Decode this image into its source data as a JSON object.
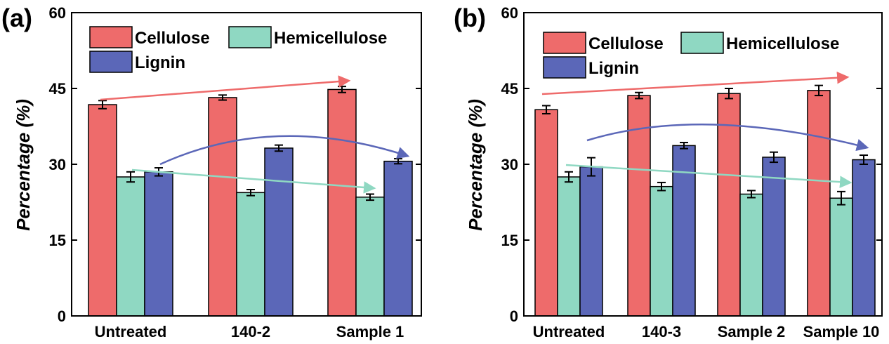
{
  "colors": {
    "cellulose": "#ee6b6b",
    "hemicellulose": "#8fd8c2",
    "lignin": "#5b67b8",
    "cellulose_arrow": "#ee6b6b",
    "hemicellulose_arrow": "#8fd8c2",
    "lignin_arrow": "#5b67b8"
  },
  "chart_data": [
    {
      "type": "bar",
      "panel": "(a)",
      "title": "",
      "xlabel": "",
      "ylabel": "Percentage (%)",
      "ylim": [
        0,
        60
      ],
      "yticks": [
        "0",
        "15",
        "30",
        "45",
        "60"
      ],
      "categories": [
        "Untreated",
        "140-2",
        "Sample 1"
      ],
      "legend": [
        "Cellulose",
        "Hemicellulose",
        "Lignin"
      ],
      "series": [
        {
          "name": "Cellulose",
          "values": [
            41.8,
            43.2,
            44.8
          ],
          "errors": [
            0.8,
            0.5,
            0.6
          ]
        },
        {
          "name": "Hemicellulose",
          "values": [
            27.5,
            24.4,
            23.5
          ],
          "errors": [
            1.0,
            0.6,
            0.6
          ]
        },
        {
          "name": "Lignin",
          "values": [
            28.5,
            33.2,
            30.6
          ],
          "errors": [
            0.8,
            0.6,
            0.5
          ]
        }
      ]
    },
    {
      "type": "bar",
      "panel": "(b)",
      "title": "",
      "xlabel": "",
      "ylabel": "Percentage (%)",
      "ylim": [
        0,
        60
      ],
      "yticks": [
        "0",
        "15",
        "30",
        "45",
        "60"
      ],
      "categories": [
        "Untreated",
        "140-3",
        "Sample 2",
        "Sample 10"
      ],
      "legend": [
        "Cellulose",
        "Hemicellulose",
        "Lignin"
      ],
      "series": [
        {
          "name": "Cellulose",
          "values": [
            40.8,
            43.6,
            44.0,
            44.6
          ],
          "errors": [
            0.8,
            0.6,
            1.0,
            1.0
          ]
        },
        {
          "name": "Hemicellulose",
          "values": [
            27.5,
            25.6,
            24.1,
            23.3
          ],
          "errors": [
            1.0,
            0.8,
            0.7,
            1.3
          ]
        },
        {
          "name": "Lignin",
          "values": [
            29.5,
            33.7,
            31.4,
            30.9
          ],
          "errors": [
            1.8,
            0.6,
            1.0,
            0.9
          ]
        }
      ]
    }
  ]
}
